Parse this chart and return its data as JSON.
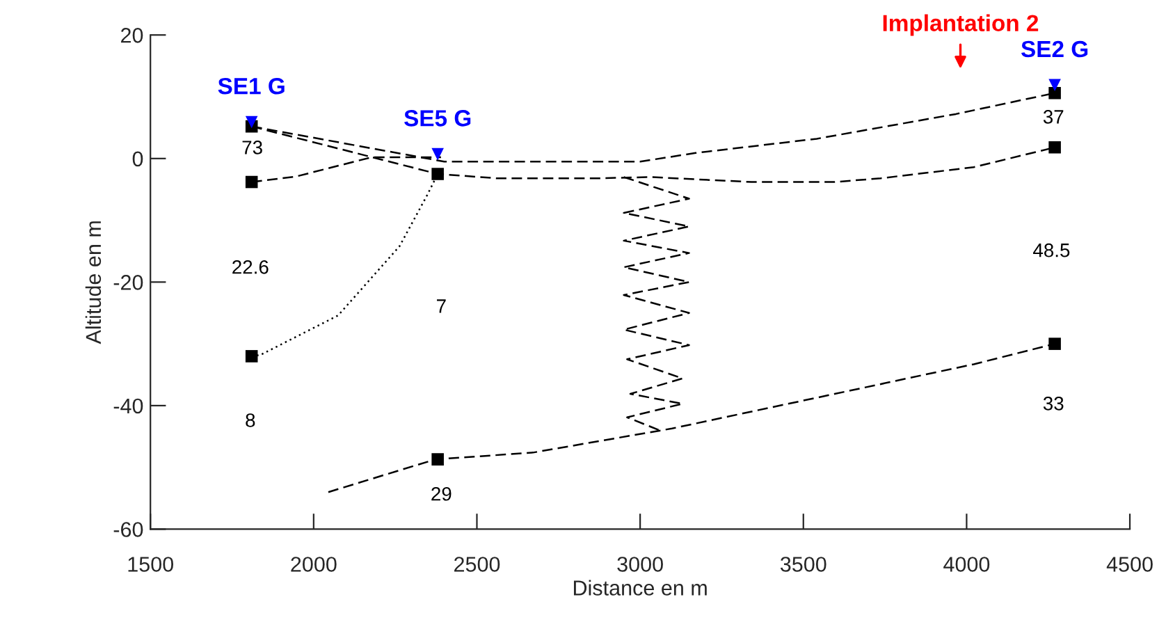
{
  "chart_data": {
    "type": "line",
    "xlabel": "Distance en m",
    "ylabel": "Altitude en m",
    "xlim": [
      1500,
      4500
    ],
    "xticks": [
      1500,
      2000,
      2500,
      3000,
      3500,
      4000,
      4500
    ],
    "ylim": [
      -60,
      20
    ],
    "yticks": [
      -60,
      -40,
      -20,
      0,
      20
    ],
    "grid": false,
    "legend": false,
    "series": [
      {
        "color": "#000000",
        "line_style": "dashed",
        "marker": "none",
        "x": [
          1810,
          2400,
          3000,
          3170,
          3541,
          3967,
          4270
        ],
        "values": [
          5.2,
          -0.5,
          -0.5,
          0.9,
          3.2,
          7.2,
          10.6
        ]
      },
      {
        "color": "#000000",
        "line_style": "dashed",
        "marker": "none",
        "x": [
          1810,
          2380,
          2561,
          2872,
          3030,
          3341,
          3596,
          3737,
          4022,
          4270
        ],
        "values": [
          5.2,
          -2.5,
          -3.2,
          -3.2,
          -3.0,
          -3.8,
          -3.8,
          -3.2,
          -1.4,
          1.8
        ]
      },
      {
        "color": "#000000",
        "line_style": "dashed",
        "marker": "none",
        "x": [
          1810,
          1947,
          2177,
          2390
        ],
        "values": [
          -3.8,
          -2.9,
          0.2,
          0.2
        ]
      },
      {
        "color": "#000000",
        "line_style": "dotted",
        "marker": "none",
        "x": [
          1810,
          1837,
          2075,
          2263,
          2348,
          2380
        ],
        "values": [
          -32,
          -31.8,
          -25.4,
          -14.2,
          -5.9,
          -2.5
        ]
      },
      {
        "color": "#000000",
        "line_style": "dashed",
        "marker": "none",
        "x": [
          2045,
          2373,
          2672,
          3098,
          3596,
          4022,
          4270
        ],
        "values": [
          -54,
          -48.7,
          -47.6,
          -43.7,
          -38.1,
          -33.3,
          -30
        ]
      },
      {
        "color": "#000000",
        "line_style": "dashed",
        "marker": "none",
        "x": [
          2950,
          3150,
          2950,
          3150,
          2950,
          3150,
          2950,
          3150,
          2950,
          3150,
          2950,
          3150,
          2960,
          3130,
          2970,
          3130,
          2960,
          3060
        ],
        "values": [
          -3,
          -6.5,
          -8.8,
          -11,
          -13.3,
          -15.3,
          -17.6,
          -20,
          -22.1,
          -25,
          -27.7,
          -30.2,
          -32.5,
          -35.6,
          -38.1,
          -39.7,
          -41.9,
          -44
        ]
      },
      {
        "type": "scatter",
        "color": "#000000",
        "marker": "square",
        "x": [
          1810,
          1810,
          1810,
          2380,
          2380,
          4270,
          4270,
          4270
        ],
        "values": [
          5.2,
          -3.8,
          -32,
          -2.5,
          -48.7,
          10.6,
          1.8,
          -30
        ]
      },
      {
        "type": "scatter",
        "color": "#0000ff",
        "marker": "triangle",
        "x": [
          1810,
          2380,
          4270
        ],
        "values": [
          5.9,
          0.7,
          11.9
        ]
      }
    ],
    "annotations": [
      {
        "text": "SE1 G",
        "x": 1810,
        "y": 5.9
      },
      {
        "text": "SE5 G",
        "x": 2380,
        "y": 0.7
      },
      {
        "text": "SE2 G",
        "x": 4270,
        "y": 11.9
      },
      "Implantation 2",
      "73",
      "22.6",
      "8",
      "7",
      "29",
      "37",
      "48.5",
      "33"
    ]
  }
}
